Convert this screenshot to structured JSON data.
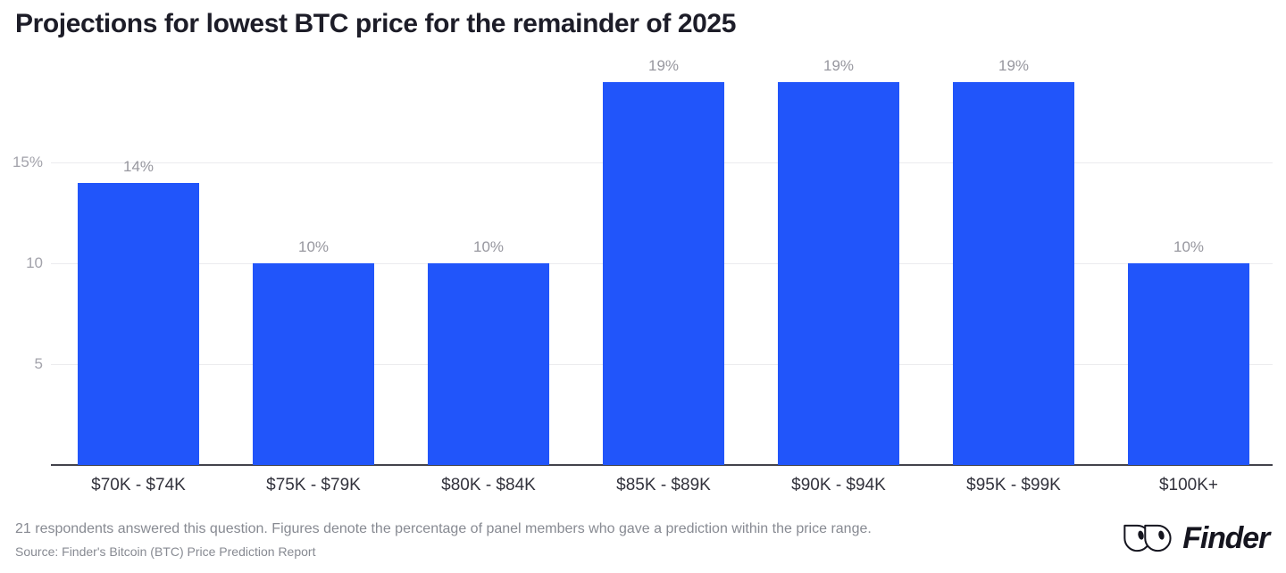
{
  "title": "Projections for lowest BTC price for the remainder of 2025",
  "chart_data": {
    "type": "bar",
    "title": "Projections for lowest BTC price for the remainder of 2025",
    "categories": [
      "$70K - $74K",
      "$75K - $79K",
      "$80K - $84K",
      "$85K - $89K",
      "$90K - $94K",
      "$95K - $99K",
      "$100K+"
    ],
    "values": [
      14,
      10,
      10,
      19,
      19,
      19,
      10
    ],
    "value_labels": [
      "14%",
      "10%",
      "10%",
      "19%",
      "19%",
      "19%",
      "10%"
    ],
    "xlabel": "",
    "ylabel": "",
    "ylim": [
      0,
      20
    ],
    "yticks": [
      {
        "value": 5,
        "label": "5"
      },
      {
        "value": 10,
        "label": "10"
      },
      {
        "value": 15,
        "label": "15%"
      }
    ],
    "grid": true,
    "legend": false,
    "bar_color": "#2155fa"
  },
  "colors": {
    "bar": "#2155fa",
    "title_text": "#1d1d28",
    "value_label": "#97979f",
    "tick_label": "#a3a3ab",
    "category_label": "#32323c",
    "gridline": "#ebebee",
    "axis_line": "#43434b",
    "footer_text": "#878a92",
    "logo": "#15151f",
    "background": "#ffffff"
  },
  "footer": {
    "note": "21 respondents answered this question. Figures denote the percentage of panel members who gave a prediction within the price range.",
    "source": "Source: Finder's Bitcoin (BTC) Price Prediction Report",
    "logo_wordmark": "Finder",
    "logo_icon": "finder-eyes-icon"
  }
}
